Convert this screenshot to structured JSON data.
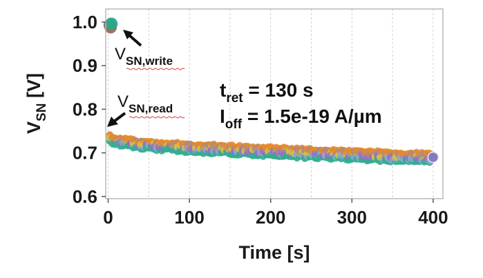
{
  "chart_data": {
    "type": "scatter",
    "xlabel": "Time [s]",
    "ylabel_main": "V",
    "ylabel_sub": "SN",
    "ylabel_unit": " [V]",
    "xlim": [
      -3,
      412
    ],
    "ylim": [
      0.595,
      1.03
    ],
    "x_ticks": [
      0,
      100,
      200,
      300,
      400
    ],
    "x_tick_labels": [
      "0",
      "100",
      "200",
      "300",
      "400"
    ],
    "y_ticks": [
      0.6,
      0.7,
      0.8,
      0.9,
      1.0
    ],
    "y_tick_labels": [
      "0.6",
      "0.7",
      "0.8",
      "0.9",
      "1.0"
    ],
    "grid": "vertical-dashed",
    "write_points": [
      {
        "x": 2,
        "y": 0.993,
        "color": "#7f6a8a"
      },
      {
        "x": 3,
        "y": 0.988,
        "color": "#a0695c"
      },
      {
        "x": 4,
        "y": 0.996,
        "color": "#2aa889"
      }
    ],
    "series": [
      {
        "color": "#e58a2c",
        "start": 0.746,
        "end": 0.697
      },
      {
        "color": "#b08a7a",
        "start": 0.744,
        "end": 0.694
      },
      {
        "color": "#d8c040",
        "start": 0.741,
        "end": 0.688
      },
      {
        "color": "#9a6cc8",
        "start": 0.738,
        "end": 0.686
      },
      {
        "color": "#8aa6d0",
        "start": 0.736,
        "end": 0.684
      },
      {
        "color": "#2eae8e",
        "start": 0.733,
        "end": 0.678
      }
    ],
    "end_marker": {
      "x": 400,
      "y": 0.69,
      "color": "#8877c4"
    },
    "annotations": {
      "write": {
        "main": "V",
        "sub": "SN,write"
      },
      "read": {
        "main": "V",
        "sub": "SN,read"
      },
      "tret": {
        "main": "t",
        "sub": "ret",
        "value": " = 130 s"
      },
      "ioff": {
        "main": "I",
        "sub": "off",
        "value": " = 1.5e-19 A/µm"
      }
    }
  }
}
